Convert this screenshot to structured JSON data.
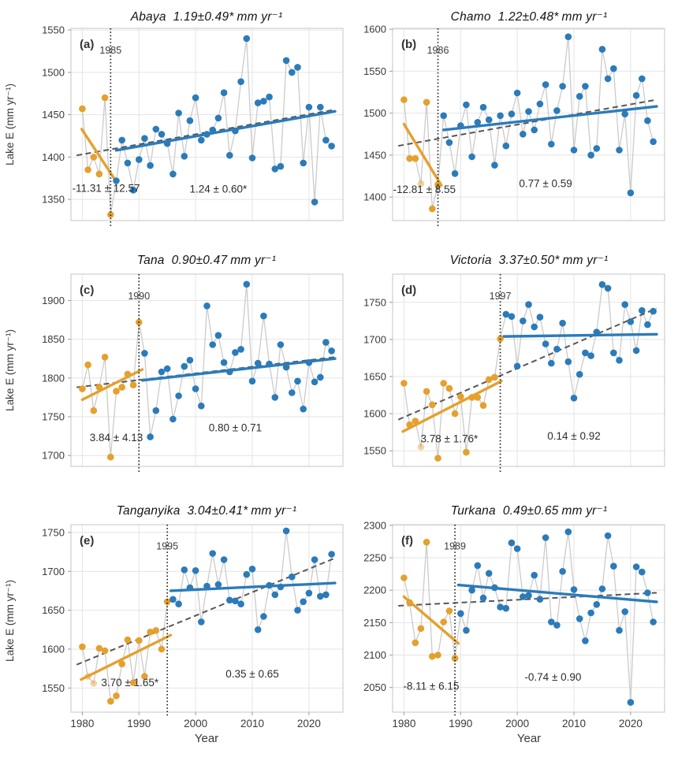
{
  "figure": {
    "ylabel": "Lake E (mm yr⁻¹)",
    "xlabel": "Year",
    "xlim": [
      1978,
      2026
    ],
    "xticks": [
      1980,
      1990,
      2000,
      2010,
      2020
    ],
    "colors": {
      "pre_break": "#E5A02D",
      "post_break": "#2B7BBA",
      "connector": "#cbcbcb",
      "overall_trend": "#575757",
      "breakpoint_line": "#1a1a1a",
      "grid": "#e4e4e4",
      "spine": "#cfcfcf",
      "tick_text": "#3a3a3a",
      "annotation_text": "#2c2c2c"
    }
  },
  "chart_data": [
    {
      "type": "scatter+line",
      "id": "a",
      "letter": "(a)",
      "lake": "Abaya",
      "trend_headline": "1.19±0.49*",
      "units": "mm yr⁻¹",
      "breakpoint_year": 1985,
      "orange_until": 1985,
      "ylim": [
        1325,
        1552
      ],
      "yticks": [
        1350,
        1400,
        1450,
        1500,
        1550
      ],
      "years": [
        1980,
        1981,
        1982,
        1983,
        1984,
        1985,
        1986,
        1987,
        1988,
        1989,
        1990,
        1991,
        1992,
        1993,
        1994,
        1995,
        1996,
        1997,
        1998,
        1999,
        2000,
        2001,
        2002,
        2003,
        2004,
        2005,
        2006,
        2007,
        2008,
        2009,
        2010,
        2011,
        2012,
        2013,
        2014,
        2015,
        2016,
        2017,
        2018,
        2019,
        2020,
        2021,
        2022,
        2023,
        2024
      ],
      "values": [
        1457,
        1385,
        1400,
        1380,
        1470,
        1332,
        1372,
        1420,
        1393,
        1361,
        1397,
        1422,
        1390,
        1433,
        1427,
        1416,
        1380,
        1452,
        1401,
        1443,
        1470,
        1420,
        1427,
        1432,
        1446,
        1476,
        1402,
        1431,
        1489,
        1540,
        1399,
        1464,
        1466,
        1471,
        1386,
        1389,
        1514,
        1500,
        1506,
        1393,
        1459,
        1347,
        1459,
        1420,
        1413
      ],
      "faded_years": [],
      "pre_annotation": {
        "text": "-11.31 ± 12.57",
        "x": 1984.2,
        "y": 1363
      },
      "post_annotation": {
        "text": "1.24 ± 0.60*",
        "x": 2004.0,
        "y": 1362
      },
      "trend_pre": [
        [
          1979.9,
          1433
        ],
        [
          1985.7,
          1374
        ]
      ],
      "trend_post": [
        [
          1986.0,
          1408
        ],
        [
          2024.6,
          1454
        ]
      ],
      "trend_overall": [
        [
          1979.0,
          1402
        ],
        [
          2024.6,
          1456
        ]
      ]
    },
    {
      "type": "scatter+line",
      "id": "b",
      "letter": "(b)",
      "lake": "Chamo",
      "trend_headline": "1.22±0.48*",
      "units": "mm yr⁻¹",
      "breakpoint_year": 1986,
      "orange_until": 1986,
      "ylim": [
        1372,
        1601
      ],
      "yticks": [
        1400,
        1450,
        1500,
        1550,
        1600
      ],
      "years": [
        1980,
        1981,
        1982,
        1983,
        1984,
        1985,
        1986,
        1987,
        1988,
        1989,
        1990,
        1991,
        1992,
        1993,
        1994,
        1995,
        1996,
        1997,
        1998,
        1999,
        2000,
        2001,
        2002,
        2003,
        2004,
        2005,
        2006,
        2007,
        2008,
        2009,
        2010,
        2011,
        2012,
        2013,
        2014,
        2015,
        2016,
        2017,
        2018,
        2019,
        2020,
        2021,
        2022,
        2023,
        2024
      ],
      "values": [
        1516,
        1446,
        1446,
        1416,
        1513,
        1386,
        1415,
        1497,
        1465,
        1428,
        1485,
        1510,
        1448,
        1489,
        1507,
        1492,
        1438,
        1497,
        1461,
        1499,
        1524,
        1475,
        1502,
        1480,
        1511,
        1534,
        1463,
        1503,
        1532,
        1591,
        1456,
        1520,
        1532,
        1450,
        1458,
        1576,
        1541,
        1553,
        1456,
        1499,
        1405,
        1521,
        1541,
        1491,
        1466
      ],
      "faded_years": [
        1983
      ],
      "pre_annotation": {
        "text": "-12.81 ± 8.55",
        "x": 1983.6,
        "y": 1409
      },
      "post_annotation": {
        "text": "0.77 ± 0.59",
        "x": 2005.0,
        "y": 1416
      },
      "trend_pre": [
        [
          1980.0,
          1487
        ],
        [
          1986.6,
          1414
        ]
      ],
      "trend_post": [
        [
          1987.0,
          1480
        ],
        [
          2024.6,
          1508
        ]
      ],
      "trend_overall": [
        [
          1979.0,
          1461
        ],
        [
          2024.6,
          1516
        ]
      ]
    },
    {
      "type": "scatter+line",
      "id": "c",
      "letter": "(c)",
      "lake": "Tana",
      "trend_headline": "0.90±0.47",
      "units": "mm yr⁻¹",
      "breakpoint_year": 1990,
      "orange_until": 1990,
      "ylim": [
        1686,
        1934
      ],
      "yticks": [
        1700,
        1750,
        1800,
        1850,
        1900
      ],
      "years": [
        1980,
        1981,
        1982,
        1983,
        1984,
        1985,
        1986,
        1987,
        1988,
        1989,
        1990,
        1991,
        1992,
        1993,
        1994,
        1995,
        1996,
        1997,
        1998,
        1999,
        2000,
        2001,
        2002,
        2003,
        2004,
        2005,
        2006,
        2007,
        2008,
        2009,
        2010,
        2011,
        2012,
        2013,
        2014,
        2015,
        2016,
        2017,
        2018,
        2019,
        2020,
        2021,
        2022,
        2023,
        2024
      ],
      "values": [
        1786,
        1817,
        1758,
        1788,
        1827,
        1698,
        1783,
        1788,
        1805,
        1791,
        1872,
        1832,
        1724,
        1758,
        1808,
        1812,
        1747,
        1777,
        1815,
        1823,
        1786,
        1764,
        1893,
        1843,
        1855,
        1820,
        1808,
        1833,
        1837,
        1921,
        1796,
        1819,
        1880,
        1818,
        1775,
        1843,
        1814,
        1781,
        1796,
        1760,
        1820,
        1795,
        1801,
        1846,
        1835
      ],
      "faded_years": [],
      "pre_annotation": {
        "text": "3.84 ± 4.13",
        "x": 1986.0,
        "y": 1723
      },
      "post_annotation": {
        "text": "0.80 ± 0.71",
        "x": 2007.0,
        "y": 1736
      },
      "trend_pre": [
        [
          1980.0,
          1772
        ],
        [
          1990.6,
          1811
        ]
      ],
      "trend_post": [
        [
          1990.6,
          1797
        ],
        [
          2024.6,
          1825
        ]
      ],
      "trend_overall": [
        [
          1979.0,
          1788
        ],
        [
          2024.6,
          1827
        ]
      ]
    },
    {
      "type": "scatter+line",
      "id": "d",
      "letter": "(d)",
      "lake": "Victoria",
      "trend_headline": "3.37±0.50*",
      "units": "mm yr⁻¹",
      "breakpoint_year": 1997,
      "orange_until": 1997,
      "ylim": [
        1529,
        1788
      ],
      "yticks": [
        1550,
        1600,
        1650,
        1700,
        1750
      ],
      "years": [
        1980,
        1981,
        1982,
        1983,
        1984,
        1985,
        1986,
        1987,
        1988,
        1989,
        1990,
        1991,
        1992,
        1993,
        1994,
        1995,
        1996,
        1997,
        1998,
        1999,
        2000,
        2001,
        2002,
        2003,
        2004,
        2005,
        2006,
        2007,
        2008,
        2009,
        2010,
        2011,
        2012,
        2013,
        2014,
        2015,
        2016,
        2017,
        2018,
        2019,
        2020,
        2021,
        2022,
        2023,
        2024
      ],
      "values": [
        1641,
        1585,
        1590,
        1555,
        1630,
        1612,
        1540,
        1641,
        1634,
        1600,
        1623,
        1548,
        1622,
        1622,
        1611,
        1646,
        1649,
        1701,
        1734,
        1731,
        1664,
        1725,
        1747,
        1717,
        1730,
        1694,
        1668,
        1687,
        1722,
        1670,
        1621,
        1653,
        1682,
        1678,
        1710,
        1774,
        1769,
        1682,
        1672,
        1747,
        1724,
        1685,
        1739,
        1720,
        1738
      ],
      "faded_years": [
        1983
      ],
      "pre_annotation": {
        "text": "3.78 ± 1.76*",
        "x": 1988.0,
        "y": 1566
      },
      "post_annotation": {
        "text": "0.14 ± 0.92",
        "x": 2010.0,
        "y": 1570
      },
      "trend_pre": [
        [
          1979.8,
          1576
        ],
        [
          1997.2,
          1644
        ]
      ],
      "trend_post": [
        [
          1997.6,
          1704
        ],
        [
          2024.6,
          1707
        ]
      ],
      "trend_overall": [
        [
          1979.0,
          1592
        ],
        [
          2024.6,
          1742
        ]
      ]
    },
    {
      "type": "scatter+line",
      "id": "e",
      "letter": "(e)",
      "lake": "Tanganyika",
      "trend_headline": "3.04±0.41*",
      "units": "mm yr⁻¹",
      "breakpoint_year": 1995,
      "orange_until": 1995,
      "ylim": [
        1519,
        1760
      ],
      "yticks": [
        1550,
        1600,
        1650,
        1700,
        1750
      ],
      "years": [
        1980,
        1981,
        1982,
        1983,
        1984,
        1985,
        1986,
        1987,
        1988,
        1989,
        1990,
        1991,
        1992,
        1993,
        1994,
        1995,
        1996,
        1997,
        1998,
        1999,
        2000,
        2001,
        2002,
        2003,
        2004,
        2005,
        2006,
        2007,
        2008,
        2009,
        2010,
        2011,
        2012,
        2013,
        2014,
        2015,
        2016,
        2017,
        2018,
        2019,
        2020,
        2021,
        2022,
        2023,
        2024
      ],
      "values": [
        1603,
        1565,
        1556,
        1601,
        1598,
        1533,
        1540,
        1581,
        1612,
        1557,
        1611,
        1565,
        1622,
        1624,
        1600,
        1661,
        1664,
        1658,
        1702,
        1679,
        1701,
        1635,
        1681,
        1723,
        1683,
        1715,
        1663,
        1662,
        1658,
        1696,
        1703,
        1625,
        1642,
        1682,
        1670,
        1680,
        1752,
        1693,
        1650,
        1661,
        1672,
        1715,
        1668,
        1670,
        1722
      ],
      "faded_years": [
        1981,
        1982
      ],
      "pre_annotation": {
        "text": "3.70 ± 1.65*",
        "x": 1988.4,
        "y": 1557
      },
      "post_annotation": {
        "text": "0.35 ± 0.65",
        "x": 2010.0,
        "y": 1568
      },
      "trend_pre": [
        [
          1979.8,
          1561
        ],
        [
          1995.6,
          1618
        ]
      ],
      "trend_post": [
        [
          1995.6,
          1675
        ],
        [
          2024.6,
          1685
        ]
      ],
      "trend_overall": [
        [
          1979.0,
          1580
        ],
        [
          2024.6,
          1717
        ]
      ]
    },
    {
      "type": "scatter+line",
      "id": "f",
      "letter": "(f)",
      "lake": "Turkana",
      "trend_headline": "0.49±0.65",
      "units": "mm yr⁻¹",
      "breakpoint_year": 1989,
      "orange_until": 1989,
      "ylim": [
        2012,
        2301
      ],
      "yticks": [
        2050,
        2100,
        2150,
        2200,
        2250,
        2300
      ],
      "years": [
        1980,
        1981,
        1982,
        1983,
        1984,
        1985,
        1986,
        1987,
        1988,
        1989,
        1990,
        1991,
        1992,
        1993,
        1994,
        1995,
        1996,
        1997,
        1998,
        1999,
        2000,
        2001,
        2002,
        2003,
        2004,
        2005,
        2006,
        2007,
        2008,
        2009,
        2010,
        2011,
        2012,
        2013,
        2014,
        2015,
        2016,
        2017,
        2018,
        2019,
        2020,
        2021,
        2022,
        2023,
        2024
      ],
      "values": [
        2219,
        2181,
        2119,
        2141,
        2274,
        2098,
        2100,
        2151,
        2168,
        2095,
        2164,
        2138,
        2200,
        2238,
        2188,
        2226,
        2204,
        2174,
        2172,
        2273,
        2264,
        2190,
        2192,
        2223,
        2186,
        2281,
        2151,
        2146,
        2229,
        2290,
        2201,
        2156,
        2122,
        2165,
        2178,
        2202,
        2284,
        2237,
        2138,
        2167,
        2027,
        2236,
        2228,
        2196,
        2151
      ],
      "faded_years": [],
      "pre_annotation": {
        "text": "-8.11 ± 6.15",
        "x": 1984.8,
        "y": 2052
      },
      "post_annotation": {
        "text": "-0.74 ± 0.90",
        "x": 2006.3,
        "y": 2066
      },
      "trend_pre": [
        [
          1980.0,
          2190
        ],
        [
          1989.6,
          2118
        ]
      ],
      "trend_post": [
        [
          1989.6,
          2208
        ],
        [
          2024.6,
          2182
        ]
      ],
      "trend_overall": [
        [
          1979.0,
          2176
        ],
        [
          2024.6,
          2196
        ]
      ]
    }
  ]
}
